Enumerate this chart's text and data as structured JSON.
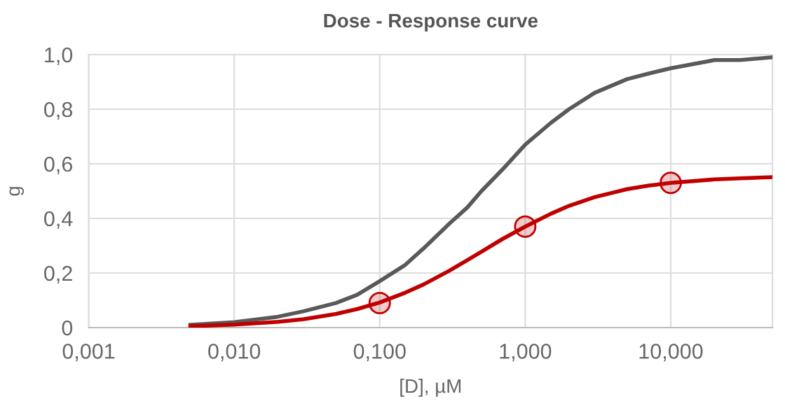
{
  "chart_data": {
    "type": "line",
    "title": "Dose - Response curve",
    "xlabel": "[D], µM",
    "ylabel": "g",
    "log": "x",
    "grid": true,
    "xlim": [
      0.001,
      50
    ],
    "xticks": [
      {
        "value": 0.001,
        "label": "0,001"
      },
      {
        "value": 0.01,
        "label": "0,010"
      },
      {
        "value": 0.1,
        "label": "0,100"
      },
      {
        "value": 1,
        "label": "1,000"
      },
      {
        "value": 10,
        "label": "10,000"
      }
    ],
    "ylim": [
      0,
      1
    ],
    "yticks": [
      0,
      {
        "value": 0.2,
        "label": "0,2"
      },
      {
        "value": 0.4,
        "label": "0,4"
      },
      {
        "value": 0.6,
        "label": "0,6"
      },
      {
        "value": 0.8,
        "label": "0,8"
      },
      {
        "value": 1,
        "label": "1,0"
      }
    ],
    "series": [
      {
        "marker": "none",
        "color": "#595959",
        "x": [
          0.005,
          0.01,
          0.02,
          0.03,
          0.05,
          0.07,
          0.1,
          0.15,
          0.2,
          0.3,
          0.4,
          0.5,
          0.7,
          1,
          1.5,
          2,
          3,
          5,
          7,
          10,
          20,
          30,
          50
        ],
        "values": [
          0.01,
          0.02,
          0.04,
          0.06,
          0.09,
          0.12,
          0.17,
          0.23,
          0.29,
          0.38,
          0.44,
          0.5,
          0.58,
          0.67,
          0.75,
          0.8,
          0.86,
          0.91,
          0.93,
          0.95,
          0.98,
          0.98,
          0.99
        ]
      },
      {
        "marker": "none",
        "color": "#c00000",
        "x": [
          0.005,
          0.01,
          0.02,
          0.03,
          0.05,
          0.07,
          0.1,
          0.15,
          0.2,
          0.3,
          0.4,
          0.5,
          0.7,
          1,
          1.5,
          2,
          3,
          5,
          7,
          10,
          20,
          30,
          50
        ],
        "values": [
          0.005,
          0.011,
          0.021,
          0.031,
          0.05,
          0.068,
          0.092,
          0.128,
          0.158,
          0.208,
          0.247,
          0.278,
          0.325,
          0.37,
          0.417,
          0.446,
          0.478,
          0.507,
          0.52,
          0.53,
          0.543,
          0.547,
          0.551
        ]
      },
      {
        "type": "scatter",
        "marker": "circle",
        "color": "#c00000",
        "x": [
          0.1,
          1,
          10
        ],
        "values": [
          0.09,
          0.37,
          0.53
        ]
      }
    ]
  }
}
